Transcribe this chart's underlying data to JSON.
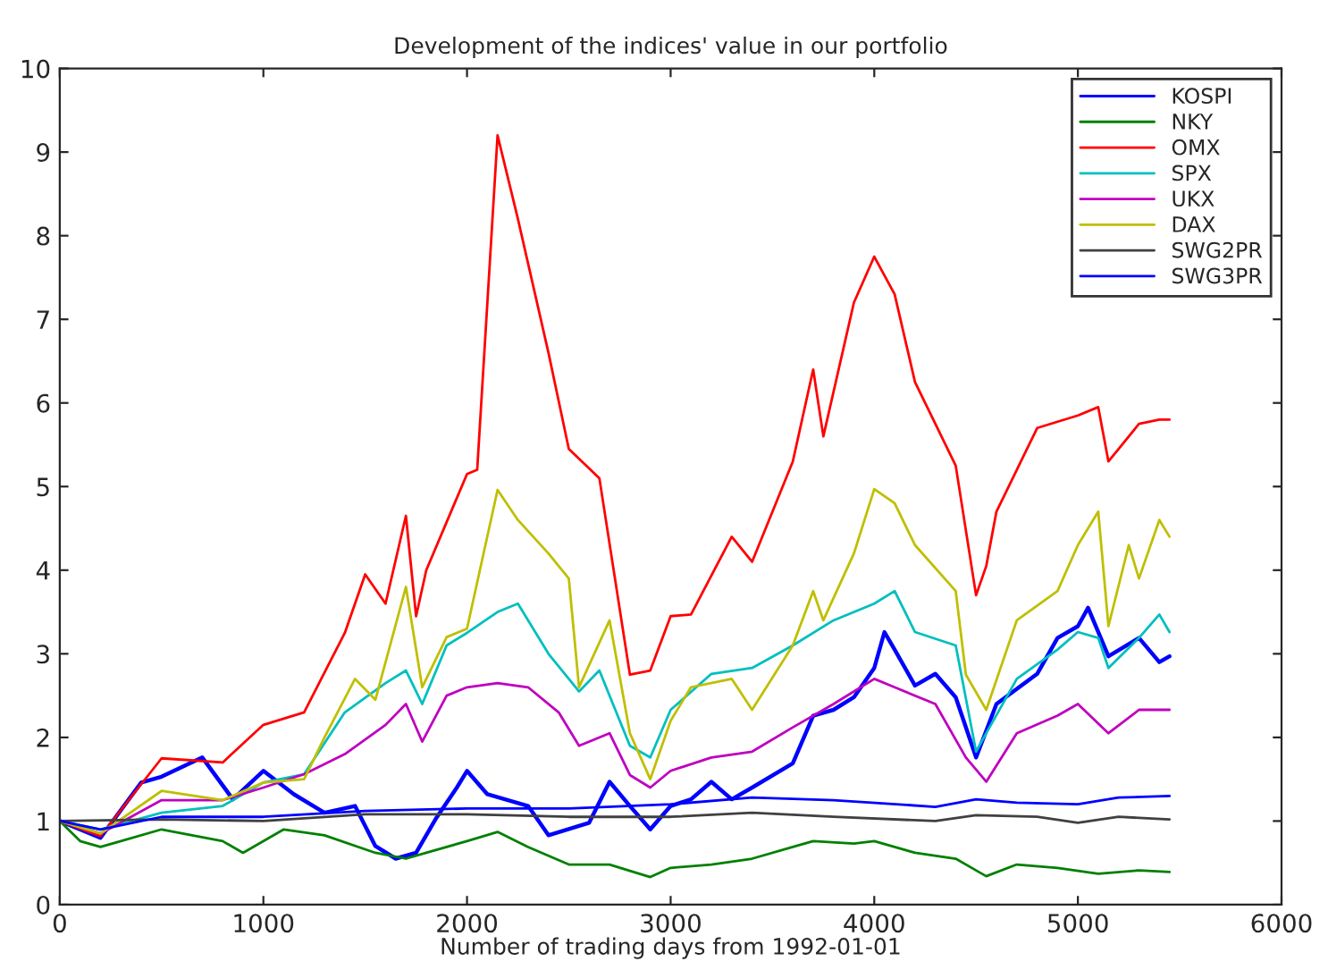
{
  "chart_data": {
    "type": "line",
    "title": "Development of the indices' value in our portfolio",
    "xlabel": "Number of trading days from 1992-01-01",
    "xlim": [
      0,
      6000
    ],
    "xticks": [
      0,
      1000,
      2000,
      3000,
      4000,
      5000,
      6000
    ],
    "ylim": [
      0,
      10
    ],
    "yticks": [
      0,
      1,
      2,
      3,
      4,
      5,
      6,
      7,
      8,
      9,
      10
    ],
    "grid": false,
    "legend": "top right",
    "line_style": "solid",
    "series": [
      {
        "name": "KOSPI",
        "color": "#0000ff",
        "x": [
          0,
          200,
          400,
          500,
          700,
          850,
          1000,
          1150,
          1300,
          1450,
          1550,
          1650,
          1750,
          1850,
          1950,
          2000,
          2100,
          2300,
          2400,
          2600,
          2700,
          2800,
          2900,
          3000,
          3100,
          3200,
          3300,
          3400,
          3600,
          3700,
          3800,
          3900,
          4000,
          4050,
          4100,
          4200,
          4300,
          4400,
          4500,
          4600,
          4800,
          4900,
          5000,
          5050,
          5150,
          5300,
          5400,
          5450
        ],
        "values": [
          1.0,
          0.8,
          1.46,
          1.53,
          1.76,
          1.26,
          1.6,
          1.32,
          1.1,
          1.18,
          0.7,
          0.55,
          0.62,
          1.04,
          1.4,
          1.6,
          1.32,
          1.18,
          0.83,
          0.98,
          1.47,
          1.18,
          0.9,
          1.18,
          1.26,
          1.47,
          1.26,
          1.4,
          1.69,
          2.26,
          2.33,
          2.48,
          2.83,
          3.26,
          3.05,
          2.62,
          2.76,
          2.48,
          1.76,
          2.4,
          2.76,
          3.19,
          3.33,
          3.55,
          2.97,
          3.19,
          2.9,
          2.97
        ]
      },
      {
        "name": "NKY",
        "color": "#008000",
        "x": [
          0,
          100,
          200,
          300,
          500,
          800,
          900,
          1100,
          1300,
          1550,
          1700,
          1800,
          2000,
          2150,
          2300,
          2500,
          2700,
          2900,
          3000,
          3200,
          3400,
          3600,
          3700,
          3900,
          4000,
          4200,
          4400,
          4500,
          4550,
          4700,
          4900,
          5100,
          5300,
          5450
        ],
        "values": [
          1.0,
          0.76,
          0.69,
          0.76,
          0.9,
          0.76,
          0.62,
          0.9,
          0.83,
          0.62,
          0.55,
          0.62,
          0.76,
          0.87,
          0.69,
          0.48,
          0.48,
          0.33,
          0.44,
          0.48,
          0.55,
          0.69,
          0.76,
          0.73,
          0.76,
          0.62,
          0.55,
          0.41,
          0.34,
          0.48,
          0.44,
          0.37,
          0.41,
          0.39
        ]
      },
      {
        "name": "OMX",
        "color": "#ff0000",
        "x": [
          0,
          200,
          500,
          800,
          1000,
          1200,
          1400,
          1500,
          1600,
          1700,
          1750,
          1800,
          2000,
          2050,
          2150,
          2250,
          2400,
          2500,
          2650,
          2800,
          2900,
          3000,
          3100,
          3300,
          3400,
          3600,
          3700,
          3750,
          3900,
          4000,
          4100,
          4200,
          4400,
          4500,
          4550,
          4600,
          4800,
          5000,
          5100,
          5150,
          5300,
          5400,
          5450
        ],
        "values": [
          1.0,
          0.82,
          1.75,
          1.7,
          2.15,
          2.3,
          3.25,
          3.95,
          3.6,
          4.65,
          3.45,
          4.0,
          5.15,
          5.2,
          9.2,
          8.2,
          6.6,
          5.45,
          5.1,
          2.75,
          2.8,
          3.45,
          3.47,
          4.4,
          4.1,
          5.3,
          6.4,
          5.6,
          7.2,
          7.75,
          7.3,
          6.25,
          5.25,
          3.7,
          4.05,
          4.7,
          5.7,
          5.85,
          5.95,
          5.3,
          5.75,
          5.8,
          5.8
        ]
      },
      {
        "name": "SPX",
        "color": "#00bfbf",
        "x": [
          0,
          200,
          500,
          800,
          1000,
          1200,
          1400,
          1600,
          1700,
          1780,
          1900,
          2000,
          2150,
          2250,
          2400,
          2550,
          2650,
          2800,
          2900,
          3000,
          3200,
          3400,
          3600,
          3800,
          4000,
          4100,
          4200,
          4400,
          4500,
          4550,
          4700,
          4900,
          5000,
          5100,
          5150,
          5300,
          5400,
          5450
        ],
        "values": [
          1.0,
          0.9,
          1.1,
          1.18,
          1.46,
          1.56,
          2.3,
          2.65,
          2.8,
          2.4,
          3.1,
          3.25,
          3.5,
          3.6,
          3.0,
          2.55,
          2.8,
          1.9,
          1.76,
          2.33,
          2.76,
          2.83,
          3.1,
          3.4,
          3.6,
          3.75,
          3.26,
          3.1,
          1.83,
          2.05,
          2.7,
          3.05,
          3.26,
          3.19,
          2.83,
          3.19,
          3.47,
          3.26
        ]
      },
      {
        "name": "UKX",
        "color": "#bf00bf",
        "x": [
          0,
          200,
          500,
          800,
          1000,
          1200,
          1400,
          1600,
          1700,
          1780,
          1900,
          2000,
          2150,
          2300,
          2450,
          2550,
          2700,
          2800,
          2900,
          3000,
          3200,
          3400,
          3600,
          3800,
          4000,
          4100,
          4300,
          4450,
          4550,
          4700,
          4900,
          5000,
          5150,
          5300,
          5450
        ],
        "values": [
          1.0,
          0.85,
          1.25,
          1.25,
          1.4,
          1.56,
          1.8,
          2.15,
          2.4,
          1.95,
          2.5,
          2.6,
          2.65,
          2.6,
          2.3,
          1.9,
          2.05,
          1.55,
          1.4,
          1.6,
          1.76,
          1.83,
          2.12,
          2.4,
          2.7,
          2.6,
          2.4,
          1.76,
          1.47,
          2.05,
          2.26,
          2.4,
          2.05,
          2.33,
          2.33
        ]
      },
      {
        "name": "DAX",
        "color": "#bfbf00",
        "x": [
          0,
          200,
          500,
          800,
          1000,
          1200,
          1300,
          1450,
          1550,
          1700,
          1780,
          1900,
          2000,
          2150,
          2250,
          2400,
          2500,
          2550,
          2700,
          2800,
          2900,
          3000,
          3100,
          3300,
          3400,
          3600,
          3700,
          3750,
          3900,
          4000,
          4100,
          4200,
          4400,
          4450,
          4550,
          4700,
          4900,
          5000,
          5100,
          5150,
          5250,
          5300,
          5400,
          5450
        ],
        "values": [
          1.0,
          0.85,
          1.36,
          1.25,
          1.46,
          1.5,
          2.0,
          2.7,
          2.45,
          3.8,
          2.6,
          3.2,
          3.3,
          4.96,
          4.6,
          4.2,
          3.9,
          2.6,
          3.4,
          2.05,
          1.5,
          2.2,
          2.6,
          2.7,
          2.33,
          3.1,
          3.75,
          3.4,
          4.2,
          4.97,
          4.8,
          4.3,
          3.75,
          2.75,
          2.33,
          3.4,
          3.75,
          4.3,
          4.7,
          3.33,
          4.3,
          3.9,
          4.6,
          4.4
        ]
      },
      {
        "name": "SWG2PR",
        "color": "#404040",
        "x": [
          0,
          500,
          1000,
          1500,
          2000,
          2500,
          3000,
          3400,
          3800,
          4300,
          4500,
          4800,
          5000,
          5200,
          5450
        ],
        "values": [
          1.0,
          1.02,
          1.0,
          1.08,
          1.08,
          1.05,
          1.05,
          1.1,
          1.05,
          1.0,
          1.07,
          1.05,
          0.98,
          1.05,
          1.02
        ]
      },
      {
        "name": "SWG3PR",
        "color": "#0000ff",
        "x": [
          0,
          200,
          500,
          1000,
          1500,
          2000,
          2500,
          3000,
          3400,
          3800,
          4300,
          4500,
          4700,
          5000,
          5200,
          5450
        ],
        "values": [
          1.0,
          0.9,
          1.05,
          1.05,
          1.12,
          1.15,
          1.15,
          1.2,
          1.28,
          1.25,
          1.17,
          1.26,
          1.22,
          1.2,
          1.28,
          1.3
        ]
      }
    ]
  }
}
